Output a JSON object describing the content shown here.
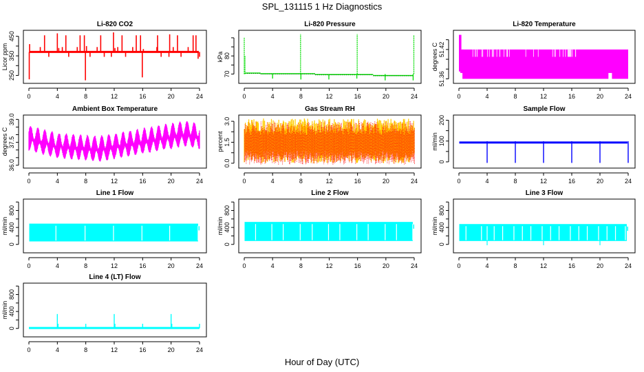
{
  "page": {
    "title": "SPL_131115  1 Hz Diagnostics",
    "xlabel": "Hour of Day (UTC)"
  },
  "chart_data": [
    {
      "type": "line",
      "title": "Li-820 CO2",
      "ylabel": "Licor ppm",
      "color": "#ff0000",
      "xlim": [
        0,
        24
      ],
      "xticks": [
        0,
        4,
        8,
        12,
        16,
        20,
        24
      ],
      "ylim": [
        220,
        470
      ],
      "yticks": [
        250,
        300,
        350,
        400,
        450
      ],
      "ytick_labels": [
        "250",
        "",
        "350",
        "",
        "450"
      ],
      "baseline": 370,
      "noise": 3,
      "spikes": [
        {
          "x": 0.05,
          "y": 230
        },
        {
          "x": 0.1,
          "y": 410
        },
        {
          "x": 1.6,
          "y": 395
        },
        {
          "x": 2.2,
          "y": 455
        },
        {
          "x": 2.8,
          "y": 345
        },
        {
          "x": 4.0,
          "y": 465
        },
        {
          "x": 4.2,
          "y": 390
        },
        {
          "x": 4.7,
          "y": 395
        },
        {
          "x": 5.2,
          "y": 455
        },
        {
          "x": 5.6,
          "y": 345
        },
        {
          "x": 6.8,
          "y": 395
        },
        {
          "x": 7.2,
          "y": 455
        },
        {
          "x": 7.8,
          "y": 455
        },
        {
          "x": 7.95,
          "y": 225
        },
        {
          "x": 8.1,
          "y": 400
        },
        {
          "x": 8.6,
          "y": 345
        },
        {
          "x": 9.6,
          "y": 395
        },
        {
          "x": 10.1,
          "y": 455
        },
        {
          "x": 10.6,
          "y": 345
        },
        {
          "x": 11.6,
          "y": 345
        },
        {
          "x": 11.9,
          "y": 470
        },
        {
          "x": 12.1,
          "y": 390
        },
        {
          "x": 12.5,
          "y": 395
        },
        {
          "x": 13.1,
          "y": 455
        },
        {
          "x": 13.6,
          "y": 345
        },
        {
          "x": 14.6,
          "y": 395
        },
        {
          "x": 15.1,
          "y": 455
        },
        {
          "x": 15.7,
          "y": 455
        },
        {
          "x": 15.95,
          "y": 240
        },
        {
          "x": 16.1,
          "y": 385
        },
        {
          "x": 18.0,
          "y": 395
        },
        {
          "x": 18.1,
          "y": 455
        },
        {
          "x": 18.6,
          "y": 345
        },
        {
          "x": 19.7,
          "y": 345
        },
        {
          "x": 19.8,
          "y": 460
        },
        {
          "x": 20.3,
          "y": 395
        },
        {
          "x": 20.9,
          "y": 455
        },
        {
          "x": 21.4,
          "y": 345
        },
        {
          "x": 22.4,
          "y": 395
        },
        {
          "x": 23.1,
          "y": 455
        },
        {
          "x": 23.5,
          "y": 455
        },
        {
          "x": 23.8,
          "y": 335
        },
        {
          "x": 24.0,
          "y": 345
        }
      ]
    },
    {
      "type": "line",
      "title": "Li-820 Pressure",
      "ylabel": "kPa",
      "color": "#00dd00",
      "xlim": [
        0,
        24
      ],
      "xticks": [
        0,
        4,
        8,
        12,
        16,
        20,
        24
      ],
      "ylim": [
        66,
        93
      ],
      "yticks": [
        70,
        75,
        80,
        85,
        90
      ],
      "ytick_labels": [
        "70",
        "",
        "80",
        "",
        ""
      ],
      "level_segments": [
        {
          "x0": 0.1,
          "x1": 2.3,
          "y": 70.5
        },
        {
          "x0": 2.3,
          "x1": 10.0,
          "y": 70.2
        },
        {
          "x0": 10.0,
          "x1": 18.2,
          "y": 69.7
        },
        {
          "x0": 18.2,
          "x1": 23.8,
          "y": 69.2
        }
      ],
      "spikes": [
        {
          "x": 0.0,
          "y": 90
        },
        {
          "x": 0.1,
          "y": 80
        },
        {
          "x": 4.0,
          "y": 67.5
        },
        {
          "x": 7.95,
          "y": 92
        },
        {
          "x": 8.0,
          "y": 67
        },
        {
          "x": 11.95,
          "y": 67
        },
        {
          "x": 15.95,
          "y": 92
        },
        {
          "x": 15.9,
          "y": 67.5
        },
        {
          "x": 19.9,
          "y": 66.5
        },
        {
          "x": 23.95,
          "y": 91.5
        },
        {
          "x": 23.85,
          "y": 66.5
        }
      ]
    },
    {
      "type": "area",
      "title": "Li-820 Temperature",
      "ylabel": "degrees C",
      "color": "#ff00ff",
      "xlim": [
        0,
        24
      ],
      "xticks": [
        0,
        4,
        8,
        12,
        16,
        20,
        24
      ],
      "ylim": [
        51.355,
        51.455
      ],
      "yticks": [
        51.36,
        51.38,
        51.4,
        51.42,
        51.44
      ],
      "ytick_labels": [
        "51.36",
        "",
        "",
        "51.42",
        ""
      ],
      "upper": 51.42,
      "lower": 51.36,
      "start_peak": 51.45,
      "gaps": [
        {
          "x0": 21.2,
          "x1": 21.7,
          "y0": 51.355,
          "y1": 51.372
        }
      ]
    },
    {
      "type": "line",
      "title": "Ambient Box Temperature",
      "ylabel": "degrees C",
      "color": "#ff00ff",
      "xlim": [
        0,
        24
      ],
      "xticks": [
        0,
        4,
        8,
        12,
        16,
        20,
        24
      ],
      "ylim": [
        35.95,
        39.15
      ],
      "yticks": [
        36.0,
        36.5,
        37.0,
        37.5,
        38.0,
        38.5,
        39.0
      ],
      "ytick_labels": [
        "36.0",
        "",
        "",
        "37.5",
        "",
        "",
        "39.0"
      ],
      "mean": 37.55,
      "cycle_hours": 1.0,
      "amplitude": 0.85,
      "trend": [
        [
          0,
          37.7
        ],
        [
          4,
          37.2
        ],
        [
          10,
          37.0
        ],
        [
          16,
          37.5
        ],
        [
          22,
          38.0
        ],
        [
          24,
          37.8
        ]
      ]
    },
    {
      "type": "line",
      "title": "Gas Stream RH",
      "ylabel": "percent",
      "colors": [
        "#ffcc00",
        "#ff0000"
      ],
      "xlim": [
        0,
        24
      ],
      "xticks": [
        0,
        4,
        8,
        12,
        16,
        20,
        24
      ],
      "ylim": [
        -0.2,
        3.3
      ],
      "yticks": [
        0.0,
        0.75,
        1.5,
        2.25,
        3.0
      ],
      "ytick_labels": [
        "0.0",
        "",
        "1.5",
        "",
        "3.0"
      ],
      "band_center": 1.6,
      "band_range": [
        0.0,
        3.2
      ]
    },
    {
      "type": "line",
      "title": "Sample Flow",
      "ylabel": "ml/min",
      "color": "#0000ff",
      "xlim": [
        0,
        24
      ],
      "xticks": [
        0,
        4,
        8,
        12,
        16,
        20,
        24
      ],
      "ylim": [
        -20,
        215
      ],
      "yticks": [
        0,
        50,
        100,
        150,
        200
      ],
      "ytick_labels": [
        "0",
        "",
        "100",
        "",
        "200"
      ],
      "baseline": 93,
      "dips": [
        4.0,
        8.0,
        12.0,
        16.0,
        20.0,
        24.0
      ],
      "dip_min": -5
    },
    {
      "type": "area",
      "title": "Line 1 Flow",
      "ylabel": "ml/min",
      "color": "#00ffff",
      "xlim": [
        0,
        24
      ],
      "xticks": [
        0,
        4,
        8,
        12,
        16,
        20,
        24
      ],
      "ylim": [
        -150,
        1020
      ],
      "yticks": [
        0,
        200,
        400,
        600,
        800,
        1000
      ],
      "ytick_labels": [
        "0",
        "",
        "400",
        "",
        "800",
        ""
      ],
      "upper": 490,
      "lower": 70,
      "gaps": [
        3.8,
        7.9,
        11.9,
        15.9,
        19.8,
        23.8
      ]
    },
    {
      "type": "area",
      "title": "Line 2 Flow",
      "ylabel": "ml/min",
      "color": "#00ffff",
      "xlim": [
        0,
        24
      ],
      "xticks": [
        0,
        4,
        8,
        12,
        16,
        20,
        24
      ],
      "ylim": [
        -150,
        1020
      ],
      "yticks": [
        0,
        200,
        400,
        600,
        800,
        1000
      ],
      "ytick_labels": [
        "0",
        "",
        "400",
        "",
        "800",
        ""
      ],
      "upper": 530,
      "lower": 80,
      "gaps": [
        1.6,
        3.9,
        5.5,
        7.9,
        9.6,
        11.9,
        13.5,
        15.9,
        17.5,
        19.9,
        21.5,
        23.8
      ]
    },
    {
      "type": "area",
      "title": "Line 3 Flow",
      "ylabel": "ml/min",
      "color": "#00ffff",
      "xlim": [
        0,
        24
      ],
      "xticks": [
        0,
        4,
        8,
        12,
        16,
        20,
        24
      ],
      "ylim": [
        -150,
        1020
      ],
      "yticks": [
        0,
        200,
        400,
        600,
        800,
        1000
      ],
      "ytick_labels": [
        "0",
        "",
        "400",
        "",
        "800",
        ""
      ],
      "upper": 480,
      "lower": 80,
      "gaps": [
        1.0,
        3.2,
        4.0,
        5.0,
        6.2,
        7.8,
        9.0,
        10.2,
        11.8,
        13.0,
        14.2,
        15.8,
        17.0,
        18.2,
        19.8,
        21.0,
        22.2,
        23.6
      ],
      "dips": [
        4.0,
        12.0,
        20.0
      ]
    },
    {
      "type": "line",
      "title": "Line 4 (LT) Flow",
      "ylabel": "ml/min",
      "color": "#00ffff",
      "xlim": [
        0,
        24
      ],
      "xticks": [
        0,
        4,
        8,
        12,
        16,
        20,
        24
      ],
      "ylim": [
        -150,
        1020
      ],
      "yticks": [
        0,
        200,
        400,
        600,
        800,
        1000
      ],
      "ytick_labels": [
        "0",
        "",
        "400",
        "",
        "800",
        ""
      ],
      "baseline": 10,
      "spikes": [
        {
          "x": 4.0,
          "y": 340
        },
        {
          "x": 4.1,
          "y": 110
        },
        {
          "x": 8.0,
          "y": 110
        },
        {
          "x": 12.0,
          "y": 340
        },
        {
          "x": 12.1,
          "y": 110
        },
        {
          "x": 16.0,
          "y": 110
        },
        {
          "x": 20.0,
          "y": 340
        },
        {
          "x": 20.1,
          "y": 110
        },
        {
          "x": 24.0,
          "y": 110
        }
      ]
    }
  ]
}
